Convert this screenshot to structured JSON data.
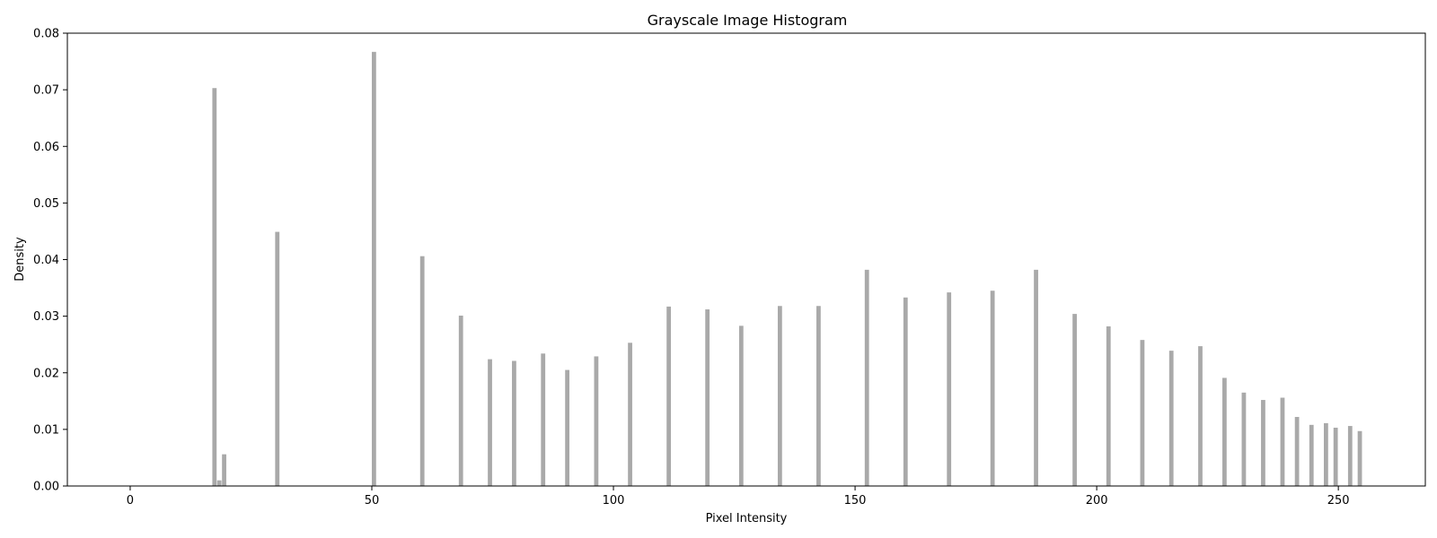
{
  "chart_data": {
    "type": "bar",
    "title": "Grayscale Image Histogram",
    "xlabel": "Pixel Intensity",
    "ylabel": "Density",
    "xlim": [
      -13,
      268
    ],
    "ylim": [
      0,
      0.08
    ],
    "xticks": [
      0,
      50,
      100,
      150,
      200,
      250
    ],
    "yticks": [
      0.0,
      0.01,
      0.02,
      0.03,
      0.04,
      0.05,
      0.06,
      0.07,
      0.08
    ],
    "ytick_labels": [
      "0.00",
      "0.01",
      "0.02",
      "0.03",
      "0.04",
      "0.05",
      "0.06",
      "0.07",
      "0.08"
    ],
    "bar_color": "#a9a9a9",
    "bin_width": 1,
    "grid": false,
    "x": [
      17,
      18,
      19,
      30,
      50,
      60,
      68,
      74,
      79,
      85,
      90,
      96,
      103,
      111,
      119,
      126,
      134,
      142,
      152,
      160,
      169,
      178,
      187,
      195,
      202,
      209,
      215,
      221,
      226,
      230,
      234,
      238,
      241,
      244,
      247,
      249,
      252,
      254
    ],
    "values": [
      0.0703,
      0.001,
      0.0056,
      0.0449,
      0.0767,
      0.0406,
      0.0301,
      0.0224,
      0.0221,
      0.0234,
      0.0205,
      0.0229,
      0.0253,
      0.0317,
      0.0312,
      0.0283,
      0.0318,
      0.0318,
      0.0382,
      0.0333,
      0.0342,
      0.0345,
      0.0382,
      0.0304,
      0.0282,
      0.0258,
      0.0239,
      0.0247,
      0.0191,
      0.0165,
      0.0152,
      0.0156,
      0.0122,
      0.0108,
      0.0111,
      0.0103,
      0.0106,
      0.0097
    ]
  }
}
